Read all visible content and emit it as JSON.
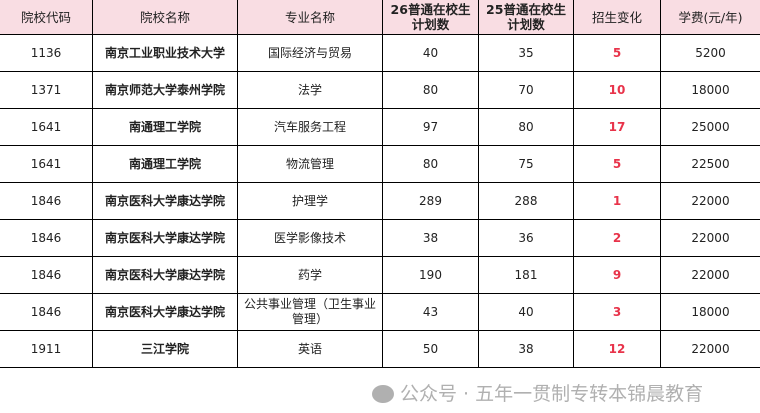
{
  "headers": [
    "院校代码",
    "院校名称",
    "专业名称",
    "26普通在校生计划数",
    "25普通在校生计划数",
    "招生变化",
    "学费(元/年)"
  ],
  "rows": [
    [
      "1136",
      "南京工业职业技术大学",
      "国际经济与贸易",
      "40",
      "35",
      "5",
      "5200"
    ],
    [
      "1371",
      "南京师范大学泰州学院",
      "法学",
      "80",
      "70",
      "10",
      "18000"
    ],
    [
      "1641",
      "南通理工学院",
      "汽车服务工程",
      "97",
      "80",
      "17",
      "25000"
    ],
    [
      "1641",
      "南通理工学院",
      "物流管理",
      "80",
      "75",
      "5",
      "22500"
    ],
    [
      "1846",
      "南京医科大学康达学院",
      "护理学",
      "289",
      "288",
      "1",
      "22000"
    ],
    [
      "1846",
      "南京医科大学康达学院",
      "医学影像技术",
      "38",
      "36",
      "2",
      "22000"
    ],
    [
      "1846",
      "南京医科大学康达学院",
      "药学",
      "190",
      "181",
      "9",
      "22000"
    ],
    [
      "1846",
      "南京医科大学康达学院",
      "公共事业管理（卫生事业管理）",
      "43",
      "40",
      "3",
      "18000"
    ],
    [
      "1911",
      "三江学院",
      "英语",
      "50",
      "38",
      "12",
      "22000"
    ]
  ],
  "watermark": {
    "text": "公众号 · 五年一贯制专转本锦晨教育",
    "icon": "wechat-icon"
  },
  "colors": {
    "header_bg": "#f9dde3",
    "change": "#e8334a"
  }
}
